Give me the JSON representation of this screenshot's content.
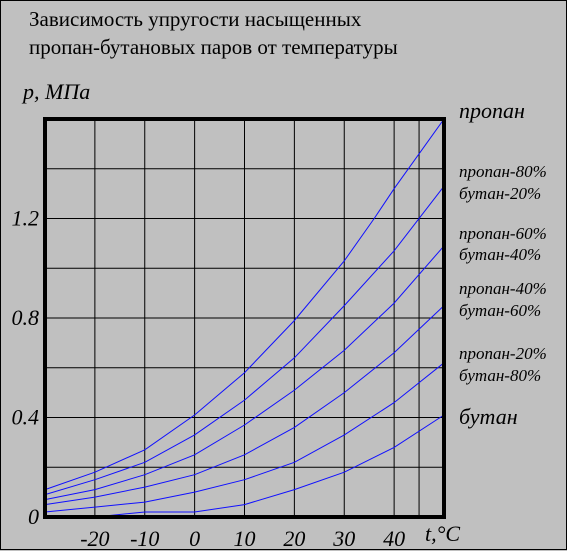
{
  "title_lines": [
    "Зависимость упругости насыщенных",
    "пропан-бутановых паров от температуры"
  ],
  "colors": {
    "background": "#c0c0c0",
    "series": "#1010ff",
    "grid": "#000000",
    "frame": "#000000"
  },
  "chart_data": {
    "type": "line",
    "title": "Зависимость упругости насыщенных пропан-бутановых паров от температуры",
    "ylabel": "p, МПа",
    "xlabel": "t,°C",
    "xlim": [
      -30,
      50
    ],
    "ylim": [
      0,
      1.6
    ],
    "x_ticks": [
      -20,
      -10,
      0,
      10,
      20,
      30,
      40
    ],
    "x_tick_labels": [
      "-20",
      "-10",
      "0",
      "10",
      "20",
      "30",
      "40"
    ],
    "y_ticks": [
      0,
      0.4,
      0.8,
      1.2
    ],
    "y_tick_labels": [
      "0",
      "0.4",
      "0.8",
      "1.2"
    ],
    "grid": true,
    "series": [
      {
        "name": "пропан",
        "label_lines": [
          "пропан"
        ],
        "big": true,
        "x": [
          -30,
          -20,
          -10,
          0,
          10,
          20,
          30,
          36,
          40,
          50
        ],
        "y": [
          0.11,
          0.18,
          0.27,
          0.41,
          0.58,
          0.79,
          1.03,
          1.2,
          1.32,
          1.6
        ]
      },
      {
        "name": "пропан-80% бутан-20%",
        "label_lines": [
          "пропан-80%",
          "бутан-20%"
        ],
        "big": false,
        "x": [
          -30,
          -20,
          -10,
          0,
          10,
          20,
          30,
          40,
          50
        ],
        "y": [
          0.09,
          0.15,
          0.22,
          0.33,
          0.47,
          0.64,
          0.85,
          1.07,
          1.33
        ]
      },
      {
        "name": "пропан-60% бутан-40%",
        "label_lines": [
          "пропан-60%",
          "бутан-40%"
        ],
        "big": false,
        "x": [
          -30,
          -20,
          -10,
          0,
          10,
          20,
          30,
          40,
          50
        ],
        "y": [
          0.07,
          0.11,
          0.17,
          0.25,
          0.37,
          0.51,
          0.67,
          0.86,
          1.09
        ]
      },
      {
        "name": "пропан-40% бутан-60%",
        "label_lines": [
          "пропан-40%",
          "бутан-60%"
        ],
        "big": false,
        "x": [
          -30,
          -20,
          -10,
          0,
          10,
          20,
          30,
          40,
          50
        ],
        "y": [
          0.05,
          0.08,
          0.12,
          0.17,
          0.25,
          0.36,
          0.5,
          0.66,
          0.85
        ]
      },
      {
        "name": "пропан-20% бутан-80%",
        "label_lines": [
          "пропан-20%",
          "бутан-80%"
        ],
        "big": false,
        "x": [
          -30,
          -20,
          -10,
          0,
          10,
          20,
          30,
          40,
          50
        ],
        "y": [
          0.02,
          0.04,
          0.06,
          0.1,
          0.15,
          0.22,
          0.33,
          0.46,
          0.62
        ]
      },
      {
        "name": "бутан",
        "label_lines": [
          "бутан"
        ],
        "big": true,
        "x": [
          -30,
          -20,
          -10,
          0,
          10,
          20,
          30,
          40,
          50
        ],
        "y": [
          0.0,
          0.0,
          0.02,
          0.02,
          0.05,
          0.11,
          0.18,
          0.28,
          0.41
        ]
      }
    ]
  }
}
